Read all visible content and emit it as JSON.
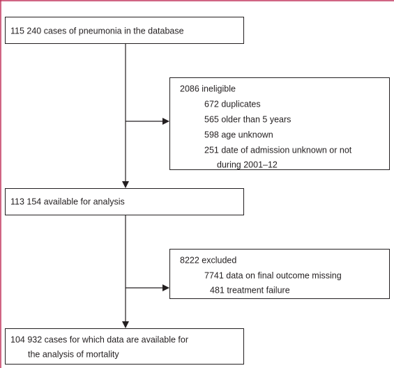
{
  "nodes": [
    {
      "lines": [
        "115 240 cases of pneumonia in the database"
      ]
    },
    {
      "lines": [
        "2086 ineligible",
        "672 duplicates",
        "565 older than 5 years",
        "598 age unknown",
        "251 date of admission unknown or not",
        "during 2001–12"
      ]
    },
    {
      "lines": [
        "113 154 available for analysis"
      ]
    },
    {
      "lines": [
        "8222 excluded",
        "7741 data on final outcome missing",
        "481 treatment failure"
      ]
    },
    {
      "lines": [
        "104 932 cases for which data are available for",
        "the analysis of mortality"
      ]
    }
  ]
}
